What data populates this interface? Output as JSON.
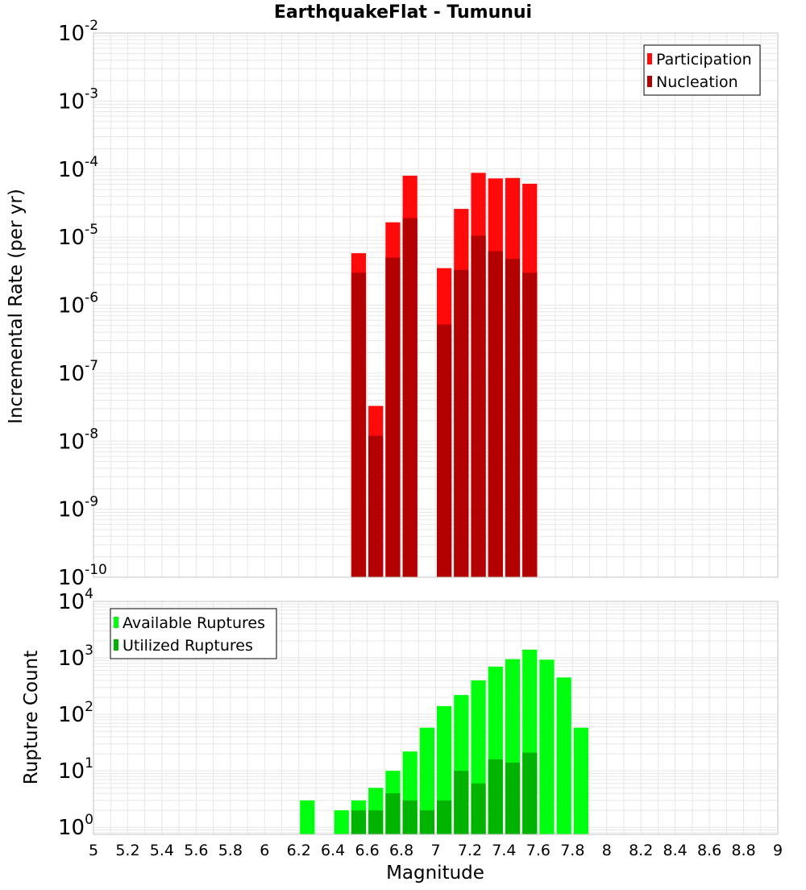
{
  "colors": {
    "participation": "#ff0a0a",
    "nucleation": "#b30000",
    "available": "#00ff0f",
    "utilized": "#00b300",
    "grid": "#e7e7e7",
    "frame": "#c4c4c4"
  },
  "chart_data": [
    {
      "type": "bar",
      "title": "EarthquakeFlat - Tumunui",
      "ylabel": "Incremental Rate (per yr)",
      "yscale": "log",
      "ylim": [
        1e-10,
        0.01
      ],
      "xlim": [
        5,
        9
      ],
      "y_ticks": [
        {
          "base": "10",
          "exp": "-10"
        },
        {
          "base": "10",
          "exp": "-9"
        },
        {
          "base": "10",
          "exp": "-8"
        },
        {
          "base": "10",
          "exp": "-7"
        },
        {
          "base": "10",
          "exp": "-6"
        },
        {
          "base": "10",
          "exp": "-5"
        },
        {
          "base": "10",
          "exp": "-4"
        },
        {
          "base": "10",
          "exp": "-3"
        },
        {
          "base": "10",
          "exp": "-2"
        }
      ],
      "legend": {
        "position": "top-right",
        "entries": [
          "Participation",
          "Nucleation"
        ]
      },
      "grid": true,
      "x": [
        6.55,
        6.65,
        6.75,
        6.85,
        7.05,
        7.15,
        7.25,
        7.35,
        7.45,
        7.55
      ],
      "series": [
        {
          "name": "Participation",
          "values": [
            5.8e-06,
            3.3e-08,
            1.65e-05,
            8e-05,
            3.5e-06,
            2.6e-05,
            8.8e-05,
            7.3e-05,
            7.4e-05,
            6.1e-05
          ]
        },
        {
          "name": "Nucleation",
          "values": [
            3e-06,
            1.2e-08,
            5e-06,
            1.9e-05,
            5.2e-07,
            3.3e-06,
            1.05e-05,
            6.2e-06,
            4.8e-06,
            3e-06
          ]
        }
      ]
    },
    {
      "type": "bar",
      "title": "",
      "xlabel": "Magnitude",
      "ylabel": "Rupture Count",
      "yscale": "log",
      "ylim": [
        0.75,
        10000
      ],
      "xlim": [
        5,
        9
      ],
      "x_ticks": [
        "5",
        "5.2",
        "5.4",
        "5.6",
        "5.8",
        "6",
        "6.2",
        "6.4",
        "6.6",
        "6.8",
        "7",
        "7.2",
        "7.4",
        "7.6",
        "7.8",
        "8",
        "8.2",
        "8.4",
        "8.6",
        "8.8",
        "9"
      ],
      "y_ticks": [
        {
          "base": "10",
          "exp": "0"
        },
        {
          "base": "10",
          "exp": "1"
        },
        {
          "base": "10",
          "exp": "2"
        },
        {
          "base": "10",
          "exp": "3"
        },
        {
          "base": "10",
          "exp": "4"
        }
      ],
      "legend": {
        "position": "top-left",
        "entries": [
          "Available Ruptures",
          "Utilized Ruptures"
        ]
      },
      "grid": true,
      "x": [
        6.25,
        6.45,
        6.55,
        6.65,
        6.75,
        6.85,
        6.95,
        7.05,
        7.15,
        7.25,
        7.35,
        7.45,
        7.55,
        7.65,
        7.75,
        7.85
      ],
      "series": [
        {
          "name": "Available Ruptures",
          "values": [
            3,
            2,
            3,
            5,
            10,
            22,
            58,
            140,
            220,
            400,
            700,
            950,
            1400,
            930,
            450,
            58
          ]
        },
        {
          "name": "Utilized Ruptures",
          "values": [
            0,
            0,
            2,
            2,
            4,
            3,
            2,
            3,
            10,
            6,
            16,
            14,
            21,
            0,
            0,
            0
          ]
        }
      ]
    }
  ]
}
